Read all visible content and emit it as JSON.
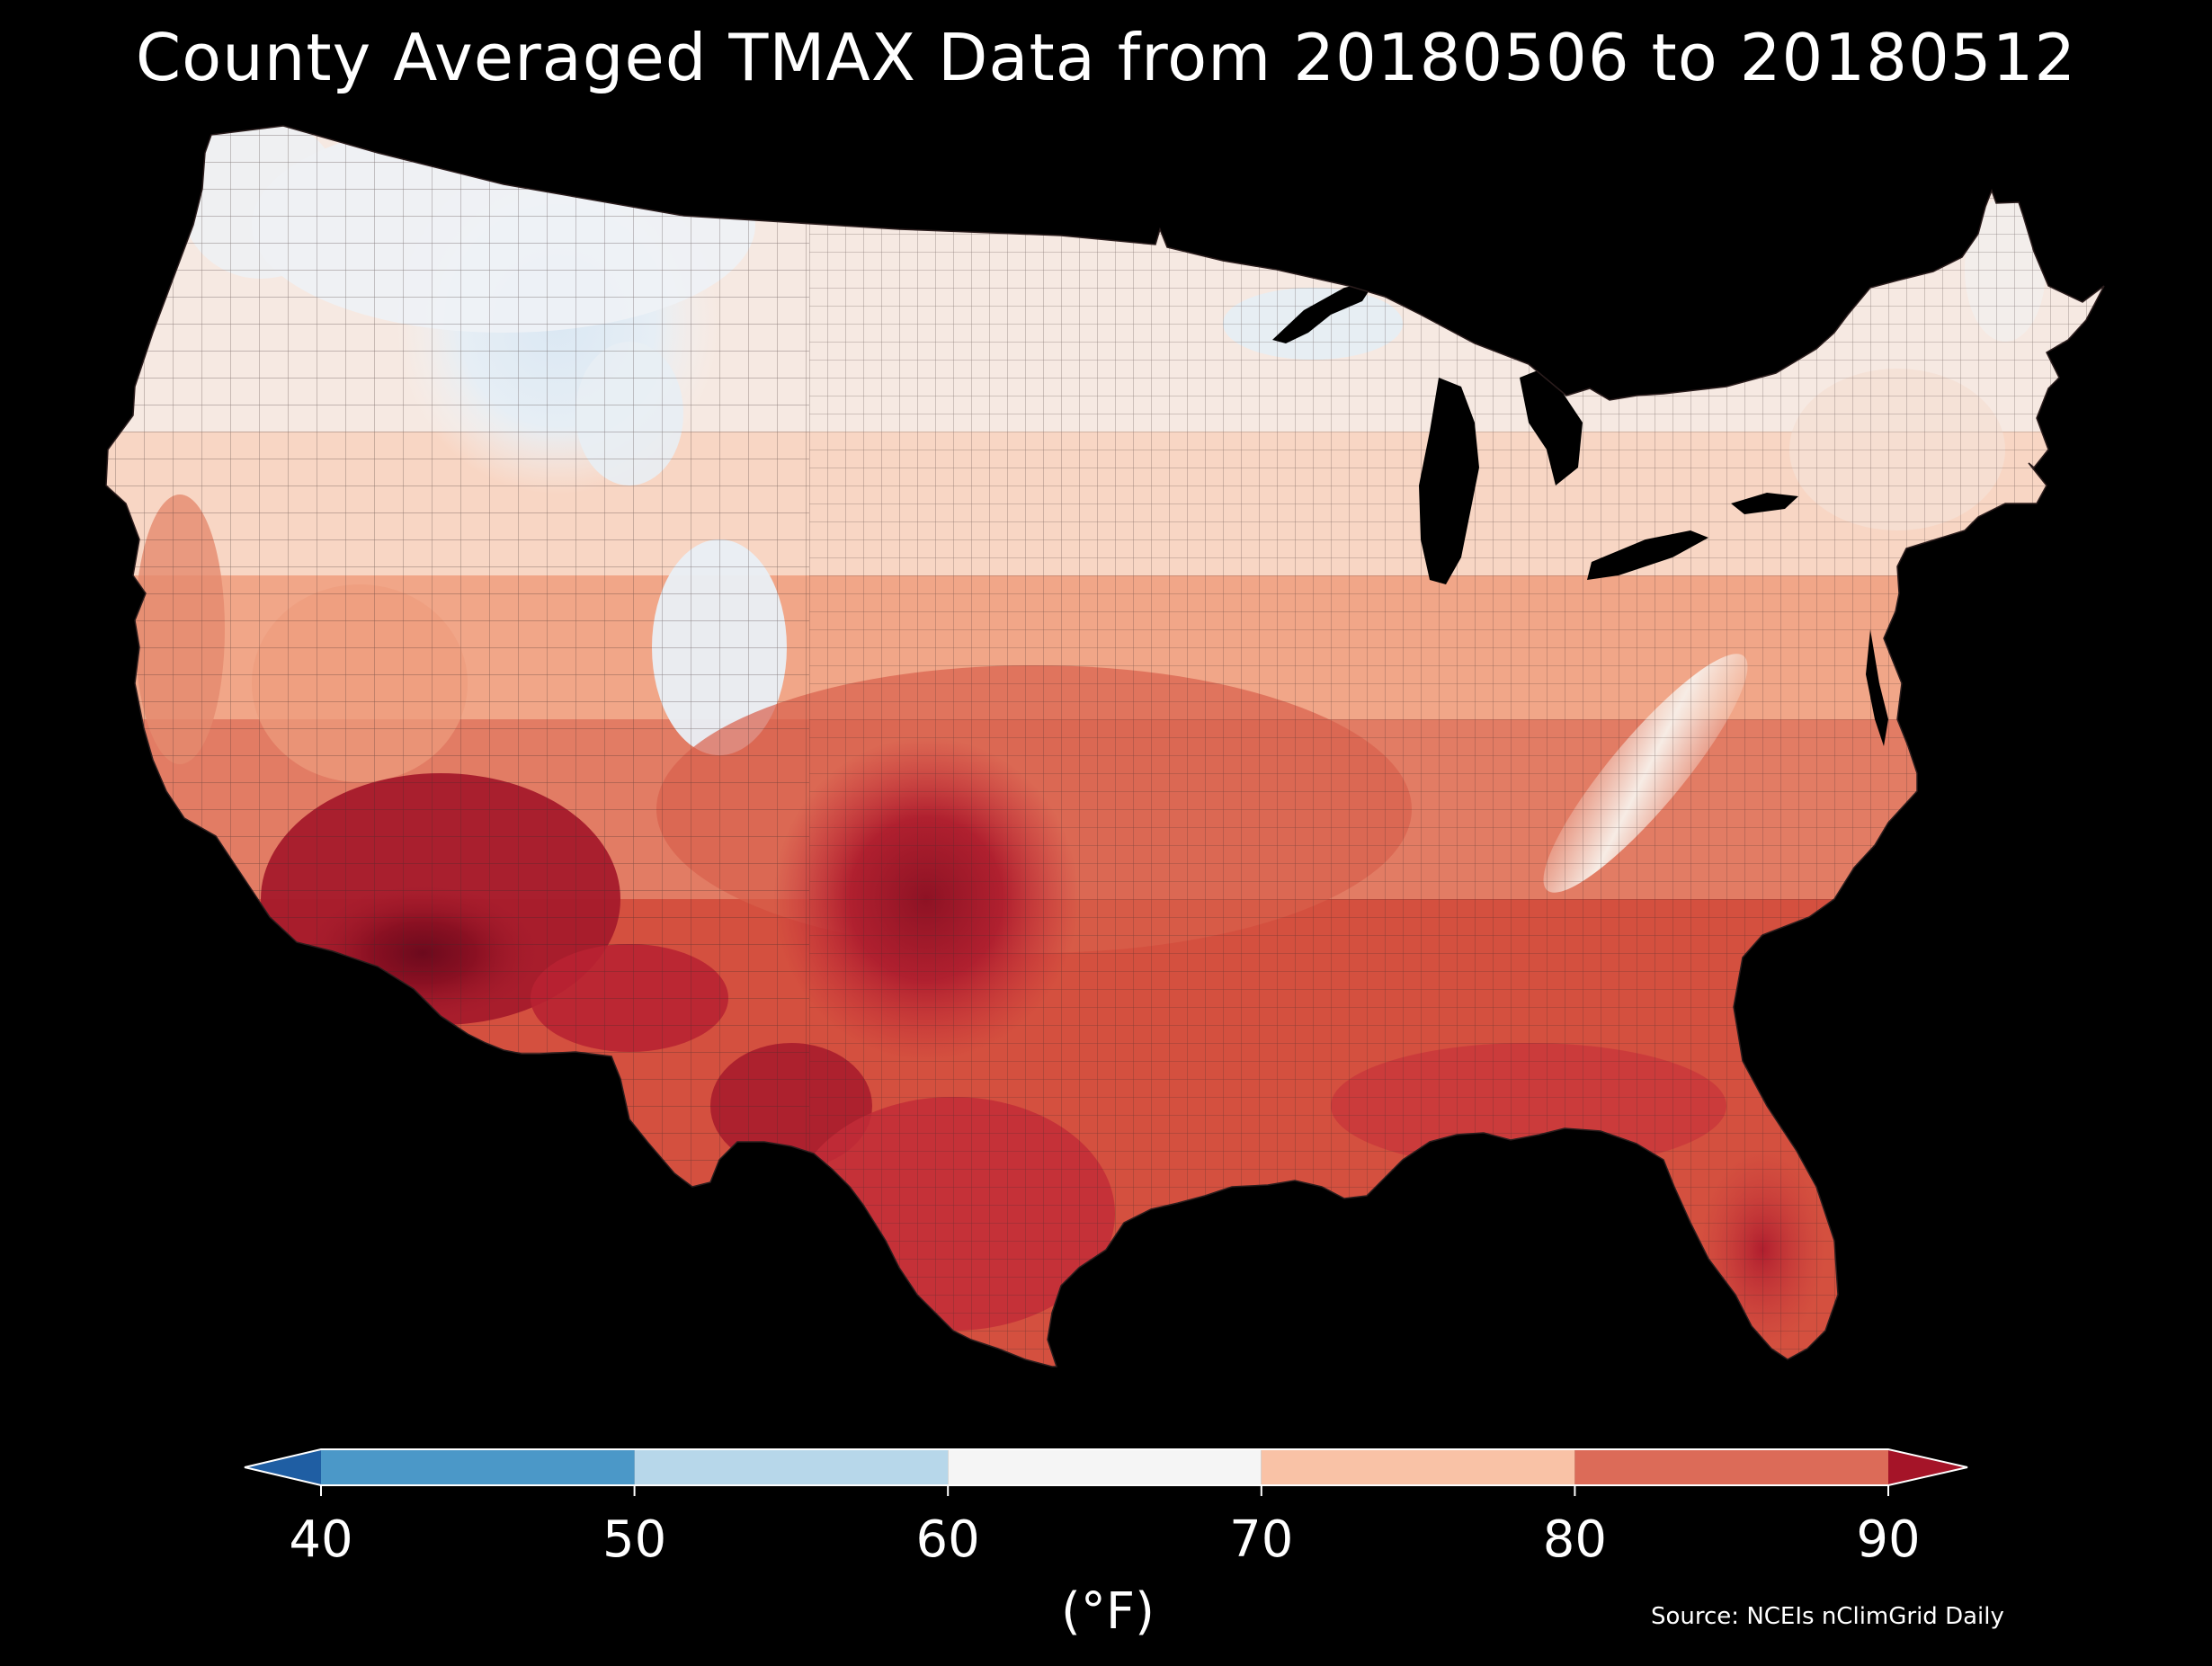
{
  "title": "County Averaged TMAX Data from 20180506 to 20180512",
  "source": "Source: NCEIs nClimGrid Daily",
  "colorbar": {
    "unit": "(°F)",
    "ticks": [
      "40",
      "50",
      "60",
      "70",
      "80",
      "90"
    ],
    "bins": [
      {
        "from": 40,
        "to": 50,
        "color": "#4b98c8"
      },
      {
        "from": 50,
        "to": 60,
        "color": "#b7d7ea"
      },
      {
        "from": 60,
        "to": 70,
        "color": "#f5f5f5"
      },
      {
        "from": 70,
        "to": 80,
        "color": "#f9c2a6"
      },
      {
        "from": 80,
        "to": 90,
        "color": "#dc6b58"
      }
    ],
    "under_color": "#1f5ea3",
    "over_color": "#a51428"
  },
  "map": {
    "region": "CONUS counties",
    "colors": {
      "cool_blue": "#dde9f3",
      "near_white": "#f4f2f1",
      "light_salmon": "#f8d3c1",
      "salmon": "#f0a587",
      "orange_red": "#df6e5a",
      "red": "#c52c36",
      "dark_red": "#a21a2b",
      "maroon": "#6c0a1d",
      "county_border": "#4a3a3a",
      "water": "#000000"
    }
  }
}
